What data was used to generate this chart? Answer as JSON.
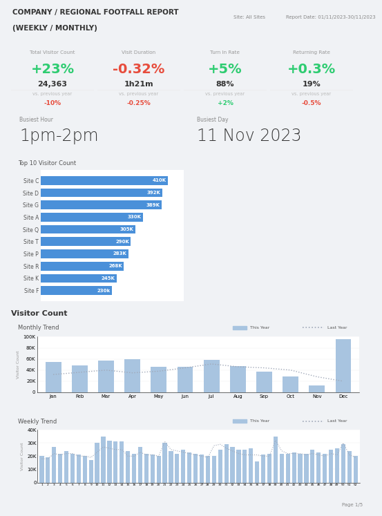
{
  "title_line1": "COMPANY / REGIONAL FOOTFALL REPORT",
  "title_line2": "(WEEKLY / MONTHLY)",
  "site_label": "Site: All Sites",
  "report_date": "Report Date: 01/11/2023-30/11/2023",
  "page_label": "Page 1/5",
  "kpi_cards": [
    {
      "label": "Total Visitor Count",
      "change": "+23%",
      "change_color": "#2ecc71",
      "value": "24,363",
      "vs_label": "vs. previous year",
      "vs_value": "-10%",
      "vs_color": "#e74c3c"
    },
    {
      "label": "Visit Duration",
      "change": "-0.32%",
      "change_color": "#e74c3c",
      "value": "1h21m",
      "vs_label": "vs. previous year",
      "vs_value": "-0.25%",
      "vs_color": "#e74c3c"
    },
    {
      "label": "Turn In Rate",
      "change": "+5%",
      "change_color": "#2ecc71",
      "value": "88%",
      "vs_label": "vs. previous year",
      "vs_value": "+2%",
      "vs_color": "#2ecc71"
    },
    {
      "label": "Returning Rate",
      "change": "+0.3%",
      "change_color": "#2ecc71",
      "value": "19%",
      "vs_label": "vs. previous year",
      "vs_value": "-0.5%",
      "vs_color": "#e74c3c"
    }
  ],
  "busiest_hour_label": "Busiest Hour",
  "busiest_hour_value": "1pm-2pm",
  "busiest_day_label": "Busiest Day",
  "busiest_day_value": "11 Nov 2023",
  "top10_title": "Top 10 Visitor Count",
  "top10_sites": [
    "Site C",
    "Site D",
    "Site G",
    "Site A",
    "Site Q",
    "Site T",
    "Site P",
    "Site R",
    "Site K",
    "Site F"
  ],
  "top10_values": [
    410000,
    392000,
    389000,
    330000,
    305000,
    290000,
    283000,
    268000,
    245000,
    230000
  ],
  "top10_labels": [
    "410K",
    "392K",
    "389K",
    "330K",
    "305K",
    "290K",
    "283K",
    "268K",
    "245K",
    "230k"
  ],
  "bar_color": "#4a90d9",
  "visitor_count_title": "Visitor Count",
  "monthly_trend_title": "Monthly Trend",
  "weekly_trend_title": "Weekly Trend",
  "months": [
    "Jan",
    "Feb",
    "Mar",
    "Apr",
    "May",
    "Jun",
    "Jul",
    "Aug",
    "Sep",
    "Oct",
    "Nov",
    "Dec"
  ],
  "monthly_this_year": [
    55000,
    48000,
    57000,
    60000,
    46000,
    46000,
    58000,
    47000,
    37000,
    28000,
    12000,
    95000
  ],
  "monthly_last_year": [
    32000,
    36000,
    40000,
    35000,
    38000,
    44000,
    51000,
    46000,
    44000,
    40000,
    28000,
    20000
  ],
  "monthly_ylim": [
    0,
    100000
  ],
  "monthly_yticks": [
    0,
    20000,
    40000,
    60000,
    80000,
    100000
  ],
  "monthly_ytick_labels": [
    "0",
    "20K",
    "40K",
    "60K",
    "80K",
    "100K"
  ],
  "weekly_this_year": [
    20000,
    19000,
    27000,
    22000,
    24000,
    22000,
    21000,
    20000,
    17000,
    30000,
    35000,
    32000,
    31000,
    31000,
    24000,
    22000,
    27000,
    22000,
    21000,
    20000,
    30000,
    24000,
    22000,
    25000,
    23000,
    22000,
    21000,
    20000,
    20000,
    25000,
    29000,
    27000,
    25000,
    25000,
    26000,
    16000,
    21000,
    22000,
    35000,
    22000,
    22000,
    23000,
    22000,
    22000,
    25000,
    23000,
    22000,
    25000,
    26000,
    29000,
    24000,
    20000
  ],
  "weekly_last_year": [
    18000,
    18000,
    22000,
    21000,
    22000,
    22000,
    20000,
    20000,
    19000,
    23000,
    27000,
    26000,
    25000,
    25000,
    20000,
    20000,
    23000,
    21000,
    21000,
    20000,
    31000,
    25000,
    24000,
    23000,
    22000,
    21000,
    20000,
    19000,
    28000,
    29000,
    26000,
    24000,
    22000,
    21000,
    21000,
    21000,
    20000,
    20000,
    32000,
    24000,
    22000,
    22000,
    22000,
    21000,
    22000,
    21000,
    20000,
    22000,
    21000,
    30000,
    21000,
    19000
  ],
  "monthly_ylim2": [
    0,
    100000
  ],
  "weekly_ylim": [
    0,
    40000
  ],
  "weekly_yticks": [
    0,
    10000,
    20000,
    30000,
    40000
  ],
  "weekly_ytick_labels": [
    "0",
    "10K",
    "20K",
    "30K",
    "40K"
  ],
  "bg_color": "#f0f2f5",
  "card_bg": "#ffffff",
  "this_year_bar_color": "#a8c4e0",
  "last_year_line_color": "#a0a8b8",
  "this_year_legend_color": "#a8c4e0",
  "last_year_legend_color": "#a0a8b8"
}
